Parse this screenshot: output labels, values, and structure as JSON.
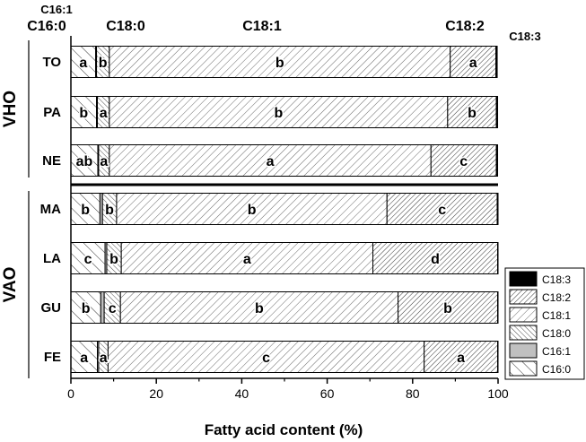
{
  "chart_data": {
    "type": "bar",
    "orientation": "horizontal",
    "stacked": true,
    "xlabel": "Fatty acid content (%)",
    "xlim": [
      0,
      100
    ],
    "xticks": [
      "0",
      "20",
      "40",
      "60",
      "80",
      "100"
    ],
    "groups": [
      {
        "name": "VHO",
        "categories": [
          "TO",
          "PA",
          "NE"
        ]
      },
      {
        "name": "VAO",
        "categories": [
          "MA",
          "LA",
          "GU",
          "FE"
        ]
      }
    ],
    "categories": [
      "TO",
      "PA",
      "NE",
      "MA",
      "LA",
      "GU",
      "FE"
    ],
    "series": [
      {
        "name": "C16:0",
        "values": [
          5.8,
          6.0,
          6.3,
          6.8,
          8.0,
          7.0,
          6.2
        ],
        "letters": [
          "a",
          "b",
          "ab",
          "b",
          "c",
          "b",
          "a"
        ]
      },
      {
        "name": "C16:1",
        "values": [
          0.2,
          0.2,
          0.2,
          0.6,
          0.4,
          0.8,
          0.3
        ],
        "letters": [
          "",
          "",
          "",
          "",
          "",
          "",
          ""
        ]
      },
      {
        "name": "C18:0",
        "values": [
          3.0,
          2.8,
          2.5,
          3.3,
          3.4,
          3.8,
          2.2
        ],
        "letters": [
          "b",
          "a",
          "a",
          "b",
          "b",
          "c",
          "a"
        ]
      },
      {
        "name": "C18:1",
        "values": [
          79.8,
          79.2,
          75.3,
          63.3,
          58.9,
          65.0,
          74.0
        ],
        "letters": [
          "b",
          "b",
          "a",
          "b",
          "a",
          "b",
          "c"
        ]
      },
      {
        "name": "C18:2",
        "values": [
          10.7,
          11.4,
          15.3,
          25.8,
          29.2,
          23.3,
          17.2
        ],
        "letters": [
          "a",
          "b",
          "c",
          "c",
          "d",
          "b",
          "a"
        ]
      },
      {
        "name": "C18:3",
        "values": [
          0.3,
          0.3,
          0.3,
          0.2,
          0.1,
          0.1,
          0.1
        ],
        "letters": [
          "",
          "",
          "",
          "",
          "",
          "",
          ""
        ]
      }
    ],
    "top_labels": [
      "C16:0",
      "C16:1",
      "C18:0",
      "C18:1",
      "C18:2",
      "C18:3"
    ],
    "legend": {
      "position": "right",
      "entries": [
        "C18:3",
        "C18:2",
        "C18:1",
        "C18:0",
        "C16:1",
        "C16:0"
      ]
    },
    "colors": {
      "C16:0": "#ffffff",
      "C16:1": "#c0c0c0",
      "C18:0": "#ffffff",
      "C18:1": "#ffffff",
      "C18:2": "#ffffff",
      "C18:3": "#000000"
    },
    "grid": false
  }
}
